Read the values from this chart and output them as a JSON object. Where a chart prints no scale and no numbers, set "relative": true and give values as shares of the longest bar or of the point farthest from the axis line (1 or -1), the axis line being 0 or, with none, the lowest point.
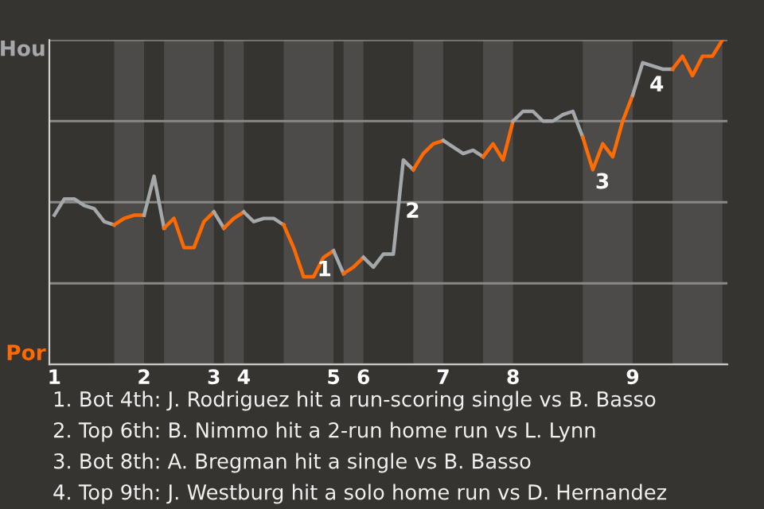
{
  "chart_data": {
    "type": "line",
    "relative": true,
    "grid": "y",
    "categories": [
      "1",
      null,
      null,
      null,
      null,
      null,
      null,
      null,
      null,
      "2",
      null,
      null,
      null,
      null,
      null,
      null,
      "3",
      null,
      null,
      "4",
      null,
      null,
      null,
      null,
      null,
      null,
      null,
      null,
      "5",
      null,
      null,
      "6",
      null,
      null,
      null,
      null,
      null,
      null,
      null,
      "7",
      null,
      null,
      null,
      null,
      null,
      null,
      "8",
      null,
      null,
      null,
      null,
      null,
      null,
      null,
      null,
      null,
      null,
      null,
      "9",
      null,
      null,
      null,
      null,
      null,
      null,
      null,
      null,
      null
    ],
    "series": [
      {
        "color": "#a4a8aa",
        "values": [
          0.46,
          0.51,
          0.51,
          0.49,
          0.48,
          0.44,
          0.43,
          null,
          null,
          null,
          null,
          null,
          null,
          null,
          null,
          null,
          null,
          null,
          null,
          null,
          null,
          null,
          null,
          null,
          null,
          null,
          null,
          null,
          null,
          null,
          null,
          null,
          null,
          null,
          null,
          null,
          null,
          null,
          null,
          null,
          null,
          null,
          null,
          null,
          null,
          null,
          null,
          null,
          null,
          null,
          null,
          null,
          null,
          null,
          null,
          null,
          null,
          null,
          null,
          null,
          null,
          null,
          null,
          null,
          null,
          null,
          null,
          null
        ]
      },
      {
        "color": "#ff6a00",
        "values": [
          null,
          null,
          null,
          null,
          null,
          null,
          0.43,
          0.45,
          0.46,
          0.46,
          null,
          null,
          null,
          null,
          null,
          null,
          null,
          null,
          null,
          null,
          null,
          null,
          null,
          null,
          null,
          null,
          null,
          null,
          null,
          null,
          null,
          null,
          null,
          null,
          null,
          null,
          null,
          null,
          null,
          null,
          null,
          null,
          null,
          null,
          null,
          null,
          null,
          null,
          null,
          null,
          null,
          null,
          null,
          null,
          null,
          null,
          null,
          null,
          null,
          null,
          null,
          null,
          null,
          null,
          null,
          null,
          null,
          null
        ]
      },
      {
        "color": "#a4a8aa",
        "values": [
          null,
          null,
          null,
          null,
          null,
          null,
          null,
          null,
          null,
          0.46,
          0.58,
          0.42,
          null,
          null,
          null,
          null,
          null,
          null,
          null,
          null,
          null,
          null,
          null,
          null,
          null,
          null,
          null,
          null,
          null,
          null,
          null,
          null,
          null,
          null,
          null,
          null,
          null,
          null,
          null,
          null,
          null,
          null,
          null,
          null,
          null,
          null,
          null,
          null,
          null,
          null,
          null,
          null,
          null,
          null,
          null,
          null,
          null,
          null,
          null,
          null,
          null,
          null,
          null,
          null,
          null,
          null,
          null,
          null
        ]
      },
      {
        "color": "#ff6a00",
        "values": [
          null,
          null,
          null,
          null,
          null,
          null,
          null,
          null,
          null,
          null,
          null,
          0.42,
          0.45,
          0.36,
          0.36,
          0.44,
          0.47,
          null,
          null,
          null,
          null,
          null,
          null,
          null,
          null,
          null,
          null,
          null,
          null,
          null,
          null,
          null,
          null,
          null,
          null,
          null,
          null,
          null,
          null,
          null,
          null,
          null,
          null,
          null,
          null,
          null,
          null,
          null,
          null,
          null,
          null,
          null,
          null,
          null,
          null,
          null,
          null,
          null,
          null,
          null,
          null,
          null,
          null,
          null,
          null,
          null,
          null,
          null
        ]
      },
      {
        "color": "#a4a8aa",
        "values": [
          null,
          null,
          null,
          null,
          null,
          null,
          null,
          null,
          null,
          null,
          null,
          null,
          null,
          null,
          null,
          null,
          0.47,
          0.42,
          null,
          null,
          null,
          null,
          null,
          null,
          null,
          null,
          null,
          null,
          null,
          null,
          null,
          null,
          null,
          null,
          null,
          null,
          null,
          null,
          null,
          null,
          null,
          null,
          null,
          null,
          null,
          null,
          null,
          null,
          null,
          null,
          null,
          null,
          null,
          null,
          null,
          null,
          null,
          null,
          null,
          null,
          null,
          null,
          null,
          null,
          null,
          null,
          null,
          null
        ]
      },
      {
        "color": "#fe6b01",
        "values": [
          null,
          null,
          null,
          null,
          null,
          null,
          null,
          null,
          null,
          null,
          null,
          null,
          null,
          null,
          null,
          null,
          null,
          0.42,
          0.45,
          0.47,
          null,
          null,
          null,
          null,
          null,
          null,
          null,
          null,
          null,
          null,
          null,
          null,
          null,
          null,
          null,
          null,
          null,
          null,
          null,
          null,
          null,
          null,
          null,
          null,
          null,
          null,
          null,
          null,
          null,
          null,
          null,
          null,
          null,
          null,
          null,
          null,
          null,
          null,
          null,
          null,
          null,
          null,
          null,
          null,
          null,
          null,
          null,
          null
        ]
      },
      {
        "color": "#a4a8aa",
        "values": [
          null,
          null,
          null,
          null,
          null,
          null,
          null,
          null,
          null,
          null,
          null,
          null,
          null,
          null,
          null,
          null,
          null,
          null,
          null,
          0.47,
          0.44,
          0.45,
          0.45,
          0.43,
          null,
          null,
          null,
          null,
          null,
          null,
          null,
          null,
          null,
          null,
          null,
          null,
          null,
          null,
          null,
          null,
          null,
          null,
          null,
          null,
          null,
          null,
          null,
          null,
          null,
          null,
          null,
          null,
          null,
          null,
          null,
          null,
          null,
          null,
          null,
          null,
          null,
          null,
          null,
          null,
          null,
          null,
          null,
          null
        ]
      },
      {
        "color": "#ff6a00",
        "values": [
          null,
          null,
          null,
          null,
          null,
          null,
          null,
          null,
          null,
          null,
          null,
          null,
          null,
          null,
          null,
          null,
          null,
          null,
          null,
          null,
          null,
          null,
          null,
          0.43,
          0.36,
          0.27,
          0.27,
          0.33,
          0.35,
          null,
          null,
          null,
          null,
          null,
          null,
          null,
          null,
          null,
          null,
          null,
          null,
          null,
          null,
          null,
          null,
          null,
          null,
          null,
          null,
          null,
          null,
          null,
          null,
          null,
          null,
          null,
          null,
          null,
          null,
          null,
          null,
          null,
          null,
          null,
          null,
          null,
          null,
          null
        ]
      },
      {
        "color": "#a4a8aa",
        "values": [
          null,
          null,
          null,
          null,
          null,
          null,
          null,
          null,
          null,
          null,
          null,
          null,
          null,
          null,
          null,
          null,
          null,
          null,
          null,
          null,
          null,
          null,
          null,
          null,
          null,
          null,
          null,
          null,
          0.35,
          0.28,
          null,
          null,
          null,
          null,
          null,
          null,
          null,
          null,
          null,
          null,
          null,
          null,
          null,
          null,
          null,
          null,
          null,
          null,
          null,
          null,
          null,
          null,
          null,
          null,
          null,
          null,
          null,
          null,
          null,
          null,
          null,
          null,
          null,
          null,
          null,
          null,
          null,
          null
        ]
      },
      {
        "color": "#fd6902",
        "values": [
          null,
          null,
          null,
          null,
          null,
          null,
          null,
          null,
          null,
          null,
          null,
          null,
          null,
          null,
          null,
          null,
          null,
          null,
          null,
          null,
          null,
          null,
          null,
          null,
          null,
          null,
          null,
          null,
          null,
          0.28,
          0.3,
          0.33,
          null,
          null,
          null,
          null,
          null,
          null,
          null,
          null,
          null,
          null,
          null,
          null,
          null,
          null,
          null,
          null,
          null,
          null,
          null,
          null,
          null,
          null,
          null,
          null,
          null,
          null,
          null,
          null,
          null,
          null,
          null,
          null,
          null,
          null,
          null,
          null
        ]
      },
      {
        "color": "#a4a8aa",
        "values": [
          null,
          null,
          null,
          null,
          null,
          null,
          null,
          null,
          null,
          null,
          null,
          null,
          null,
          null,
          null,
          null,
          null,
          null,
          null,
          null,
          null,
          null,
          null,
          null,
          null,
          null,
          null,
          null,
          null,
          null,
          null,
          0.33,
          0.3,
          0.34,
          0.34,
          0.63,
          0.6,
          null,
          null,
          null,
          null,
          null,
          null,
          null,
          null,
          null,
          null,
          null,
          null,
          null,
          null,
          null,
          null,
          null,
          null,
          null,
          null,
          null,
          null,
          null,
          null,
          null,
          null,
          null,
          null,
          null,
          null,
          null
        ]
      },
      {
        "color": "#ff6a00",
        "values": [
          null,
          null,
          null,
          null,
          null,
          null,
          null,
          null,
          null,
          null,
          null,
          null,
          null,
          null,
          null,
          null,
          null,
          null,
          null,
          null,
          null,
          null,
          null,
          null,
          null,
          null,
          null,
          null,
          null,
          null,
          null,
          null,
          null,
          null,
          null,
          null,
          0.6,
          0.65,
          0.68,
          0.69,
          null,
          null,
          null,
          null,
          null,
          null,
          null,
          null,
          null,
          null,
          null,
          null,
          null,
          null,
          null,
          null,
          null,
          null,
          null,
          null,
          null,
          null,
          null,
          null,
          null,
          null,
          null,
          null
        ]
      },
      {
        "color": "#a4a8aa",
        "values": [
          null,
          null,
          null,
          null,
          null,
          null,
          null,
          null,
          null,
          null,
          null,
          null,
          null,
          null,
          null,
          null,
          null,
          null,
          null,
          null,
          null,
          null,
          null,
          null,
          null,
          null,
          null,
          null,
          null,
          null,
          null,
          null,
          null,
          null,
          null,
          null,
          null,
          null,
          null,
          0.69,
          0.67,
          0.65,
          0.66,
          0.64,
          null,
          null,
          null,
          null,
          null,
          null,
          null,
          null,
          null,
          null,
          null,
          null,
          null,
          null,
          null,
          null,
          null,
          null,
          null,
          null,
          null,
          null,
          null,
          null
        ]
      },
      {
        "color": "#ff6a00",
        "values": [
          null,
          null,
          null,
          null,
          null,
          null,
          null,
          null,
          null,
          null,
          null,
          null,
          null,
          null,
          null,
          null,
          null,
          null,
          null,
          null,
          null,
          null,
          null,
          null,
          null,
          null,
          null,
          null,
          null,
          null,
          null,
          null,
          null,
          null,
          null,
          null,
          null,
          null,
          null,
          null,
          null,
          null,
          null,
          0.64,
          0.68,
          0.63,
          0.75,
          null,
          null,
          null,
          null,
          null,
          null,
          null,
          null,
          null,
          null,
          null,
          null,
          null,
          null,
          null,
          null,
          null,
          null,
          null,
          null,
          null
        ]
      },
      {
        "color": "#a4a8aa",
        "values": [
          null,
          null,
          null,
          null,
          null,
          null,
          null,
          null,
          null,
          null,
          null,
          null,
          null,
          null,
          null,
          null,
          null,
          null,
          null,
          null,
          null,
          null,
          null,
          null,
          null,
          null,
          null,
          null,
          null,
          null,
          null,
          null,
          null,
          null,
          null,
          null,
          null,
          null,
          null,
          null,
          null,
          null,
          null,
          null,
          null,
          null,
          0.75,
          0.78,
          0.78,
          0.75,
          0.75,
          0.77,
          0.78,
          0.7,
          null,
          null,
          null,
          null,
          null,
          null,
          null,
          null,
          null,
          null,
          null,
          null,
          null,
          null
        ]
      },
      {
        "color": "#ff6c02",
        "values": [
          null,
          null,
          null,
          null,
          null,
          null,
          null,
          null,
          null,
          null,
          null,
          null,
          null,
          null,
          null,
          null,
          null,
          null,
          null,
          null,
          null,
          null,
          null,
          null,
          null,
          null,
          null,
          null,
          null,
          null,
          null,
          null,
          null,
          null,
          null,
          null,
          null,
          null,
          null,
          null,
          null,
          null,
          null,
          null,
          null,
          null,
          null,
          null,
          null,
          null,
          null,
          null,
          null,
          0.7,
          0.6,
          0.68,
          0.64,
          0.75,
          0.83,
          null,
          null,
          null,
          null,
          null,
          null,
          null,
          null,
          null
        ]
      },
      {
        "color": "#a4a8aa",
        "values": [
          null,
          null,
          null,
          null,
          null,
          null,
          null,
          null,
          null,
          null,
          null,
          null,
          null,
          null,
          null,
          null,
          null,
          null,
          null,
          null,
          null,
          null,
          null,
          null,
          null,
          null,
          null,
          null,
          null,
          null,
          null,
          null,
          null,
          null,
          null,
          null,
          null,
          null,
          null,
          null,
          null,
          null,
          null,
          null,
          null,
          null,
          null,
          null,
          null,
          null,
          null,
          null,
          null,
          null,
          null,
          null,
          null,
          null,
          0.83,
          0.93,
          0.92,
          0.91,
          0.91,
          null,
          null,
          null,
          null,
          null
        ]
      },
      {
        "color": "#fe6803",
        "values": [
          null,
          null,
          null,
          null,
          null,
          null,
          null,
          null,
          null,
          null,
          null,
          null,
          null,
          null,
          null,
          null,
          null,
          null,
          null,
          null,
          null,
          null,
          null,
          null,
          null,
          null,
          null,
          null,
          null,
          null,
          null,
          null,
          null,
          null,
          null,
          null,
          null,
          null,
          null,
          null,
          null,
          null,
          null,
          null,
          null,
          null,
          null,
          null,
          null,
          null,
          null,
          null,
          null,
          null,
          null,
          null,
          null,
          null,
          null,
          null,
          null,
          null,
          0.91,
          0.95,
          0.89,
          0.95,
          0.95,
          1.0
        ]
      }
    ],
    "annotations": [
      "Hou",
      "Por",
      "1",
      "2",
      "3",
      "4",
      "1. Bot 4th: J. Rodriguez hit a run-scoring single vs B. Basso",
      "2. Top 6th: B. Nimmo hit a 2-run home run vs L. Lynn",
      "3. Bot 8th: A. Bregman hit a single vs B. Basso",
      "4. Top 9th: J. Westburg hit a solo home run vs D. Hernandez"
    ]
  }
}
